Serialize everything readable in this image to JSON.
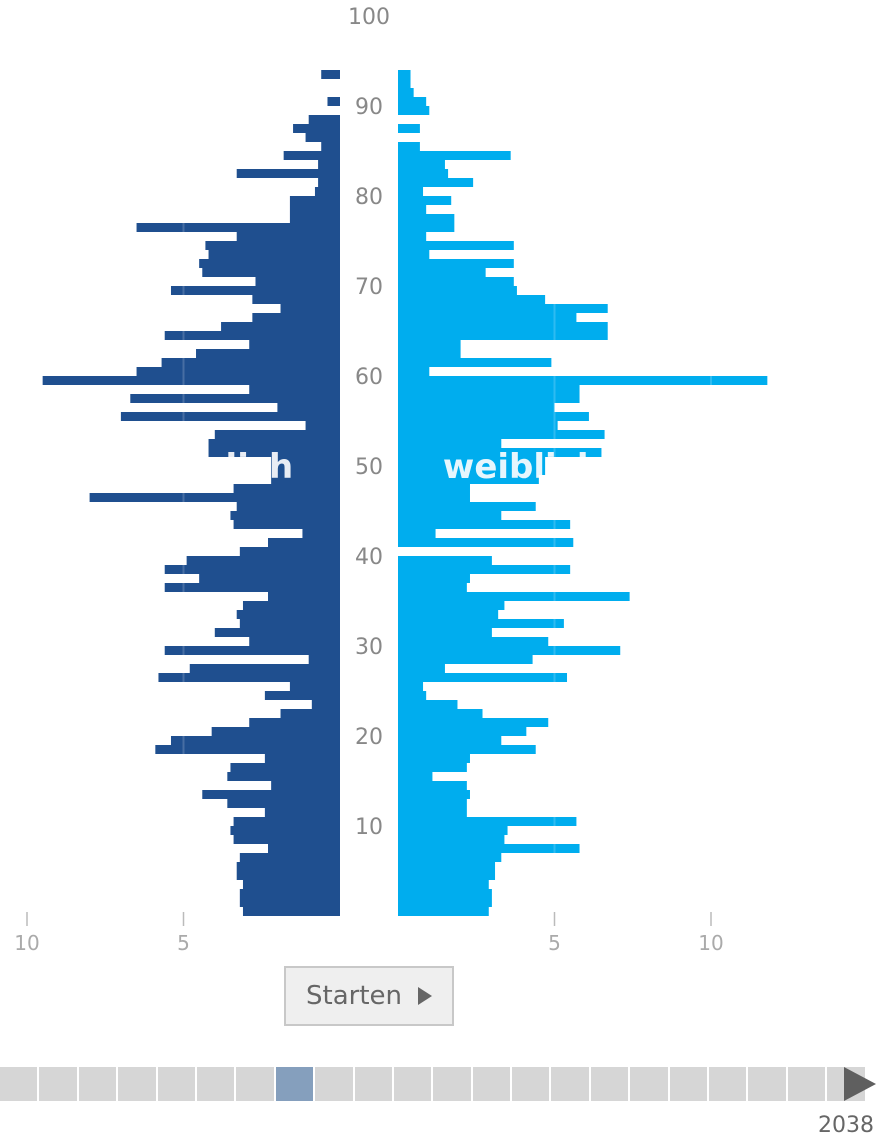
{
  "chart_data": {
    "type": "bar",
    "subtype": "population-pyramid",
    "y_axis": {
      "min": 0,
      "max": 100,
      "ticks": [
        10,
        20,
        30,
        40,
        50,
        60,
        70,
        80,
        90,
        100
      ]
    },
    "x_axis": {
      "max": 12,
      "tick_values": [
        10,
        5
      ],
      "tick_labels": [
        "10",
        "5"
      ]
    },
    "series": [
      {
        "name": "männlich",
        "color": "#1f4f8f",
        "ages": [
          1,
          2,
          3,
          4,
          5,
          6,
          7,
          8,
          9,
          10,
          11,
          12,
          13,
          14,
          15,
          16,
          17,
          18,
          19,
          20,
          21,
          22,
          23,
          24,
          25,
          26,
          27,
          28,
          29,
          30,
          31,
          32,
          33,
          34,
          35,
          36,
          37,
          38,
          39,
          40,
          41,
          42,
          43,
          44,
          45,
          46,
          47,
          48,
          49,
          50,
          51,
          52,
          53,
          54,
          55,
          56,
          57,
          58,
          59,
          60,
          61,
          62,
          63,
          64,
          65,
          66,
          67,
          68,
          69,
          70,
          71,
          72,
          73,
          74,
          75,
          76,
          77,
          78,
          79,
          80,
          81,
          82,
          83,
          84,
          85,
          86,
          87,
          88,
          89,
          90,
          91,
          92,
          93,
          94
        ],
        "values": [
          3.1,
          3.2,
          3.2,
          3.1,
          3.3,
          3.3,
          3.2,
          2.3,
          3.4,
          3.5,
          3.4,
          2.4,
          3.6,
          4.4,
          2.2,
          3.6,
          3.5,
          2.4,
          5.9,
          5.4,
          4.1,
          2.9,
          1.9,
          0.9,
          2.4,
          1.6,
          5.8,
          4.8,
          1.0,
          5.6,
          2.9,
          4.0,
          3.2,
          3.3,
          3.1,
          2.3,
          5.6,
          4.5,
          5.6,
          4.9,
          3.2,
          2.3,
          1.2,
          3.4,
          3.5,
          3.3,
          8.0,
          3.4,
          2.2,
          2.2,
          2.2,
          4.2,
          4.2,
          4.0,
          1.1,
          7.0,
          2.0,
          6.7,
          2.9,
          9.5,
          6.5,
          5.7,
          4.6,
          2.9,
          5.6,
          3.8,
          2.8,
          1.9,
          2.8,
          5.4,
          2.7,
          4.4,
          4.5,
          4.2,
          4.3,
          3.3,
          6.5,
          1.6,
          1.6,
          1.6,
          0.8,
          0.7,
          3.3,
          0.7,
          1.8,
          0.6,
          1.1,
          1.5,
          1.0,
          0,
          0.4,
          0,
          0,
          0.6
        ]
      },
      {
        "name": "weiblich",
        "color": "#00adee",
        "ages": [
          1,
          2,
          3,
          4,
          5,
          6,
          7,
          8,
          9,
          10,
          11,
          12,
          13,
          14,
          15,
          16,
          17,
          18,
          19,
          20,
          21,
          22,
          23,
          24,
          25,
          26,
          27,
          28,
          29,
          30,
          31,
          32,
          33,
          34,
          35,
          36,
          37,
          38,
          39,
          40,
          41,
          42,
          43,
          44,
          45,
          46,
          47,
          48,
          49,
          50,
          51,
          52,
          53,
          54,
          55,
          56,
          57,
          58,
          59,
          60,
          61,
          62,
          63,
          64,
          65,
          66,
          67,
          68,
          69,
          70,
          71,
          72,
          73,
          74,
          75,
          76,
          77,
          78,
          79,
          80,
          81,
          82,
          83,
          84,
          85,
          86,
          87,
          88,
          89,
          90,
          91,
          92,
          93,
          94
        ],
        "values": [
          2.9,
          3.0,
          3.0,
          2.9,
          3.1,
          3.1,
          3.3,
          5.8,
          3.4,
          3.5,
          5.7,
          2.2,
          2.2,
          2.3,
          2.2,
          1.1,
          2.2,
          2.3,
          4.4,
          3.3,
          4.1,
          4.8,
          2.7,
          1.9,
          0.9,
          0.8,
          5.4,
          1.5,
          4.3,
          7.1,
          4.8,
          3.0,
          5.3,
          3.2,
          3.4,
          7.4,
          2.2,
          2.3,
          5.5,
          3.0,
          0,
          5.6,
          1.2,
          5.5,
          3.3,
          4.4,
          2.3,
          2.3,
          4.5,
          4.7,
          4.7,
          6.5,
          3.3,
          6.6,
          5.1,
          6.1,
          5.0,
          5.8,
          5.8,
          11.8,
          1.0,
          4.9,
          2.0,
          2.0,
          6.7,
          6.7,
          5.7,
          6.7,
          4.7,
          3.8,
          3.7,
          2.8,
          3.7,
          1.0,
          3.7,
          0.9,
          1.8,
          1.8,
          0.9,
          1.7,
          0.8,
          2.4,
          1.6,
          1.5,
          3.6,
          0.7,
          0,
          0.7,
          0,
          1.0,
          0.9,
          0.5,
          0.4,
          0.4
        ]
      }
    ]
  },
  "labels": {
    "male": "männlich",
    "female": "weiblich"
  },
  "controls": {
    "start_label": "Starten",
    "year": "2038"
  },
  "timeline": {
    "segments": 22,
    "active_index": 7
  },
  "colors": {
    "male": "#1f4f8f",
    "female": "#00adee",
    "timeline_active": "#859fbd",
    "timeline_inactive": "#d6d6d6"
  }
}
